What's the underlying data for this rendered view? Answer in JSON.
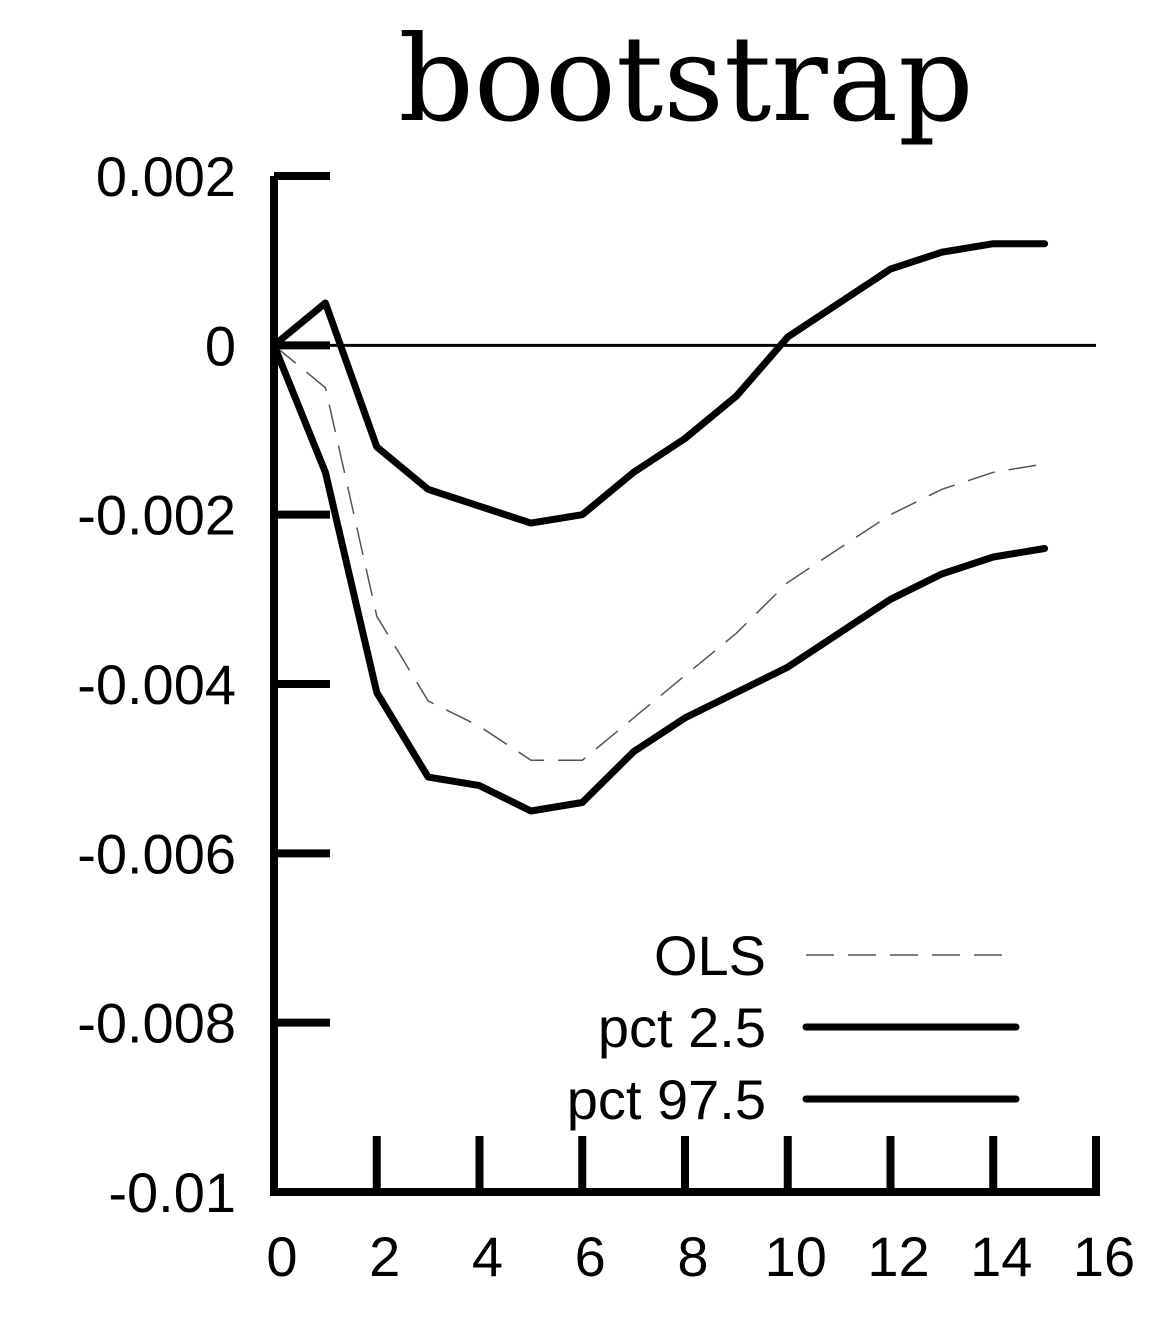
{
  "chart_data": {
    "type": "line",
    "title": "bootstrap",
    "xlabel": "",
    "ylabel": "",
    "xlim": [
      0,
      16
    ],
    "ylim": [
      -0.01,
      0.002
    ],
    "x_ticks": [
      "0",
      "2",
      "4",
      "6",
      "8",
      "10",
      "12",
      "14",
      "16"
    ],
    "y_ticks": [
      "0.002",
      "0",
      "-0.002",
      "-0.004",
      "-0.006",
      "-0.008",
      "-0.01"
    ],
    "zero_line": true,
    "grid": false,
    "legend_position": "bottom-right",
    "x": [
      0,
      1,
      2,
      3,
      4,
      5,
      6,
      7,
      8,
      9,
      10,
      11,
      12,
      13,
      14,
      15
    ],
    "series": [
      {
        "name": "OLS",
        "style": "dashed-thin",
        "color": "#555555",
        "values": [
          0,
          -0.0005,
          -0.0032,
          -0.0042,
          -0.0045,
          -0.0049,
          -0.0049,
          -0.0044,
          -0.0039,
          -0.0034,
          -0.0028,
          -0.0024,
          -0.002,
          -0.0017,
          -0.0015,
          -0.0014
        ]
      },
      {
        "name": "pct 2.5",
        "style": "solid-thick",
        "color": "#000000",
        "values": [
          0,
          -0.0015,
          -0.0041,
          -0.0051,
          -0.0052,
          -0.0055,
          -0.0054,
          -0.0048,
          -0.0044,
          -0.0041,
          -0.0038,
          -0.0034,
          -0.003,
          -0.0027,
          -0.0025,
          -0.0024
        ]
      },
      {
        "name": "pct 97.5",
        "style": "solid-thick",
        "color": "#000000",
        "values": [
          0,
          0.0005,
          -0.0012,
          -0.0017,
          -0.0019,
          -0.0021,
          -0.002,
          -0.0015,
          -0.0011,
          -0.0006,
          0.0001,
          0.0005,
          0.0009,
          0.0011,
          0.0012,
          0.0012
        ]
      }
    ]
  }
}
